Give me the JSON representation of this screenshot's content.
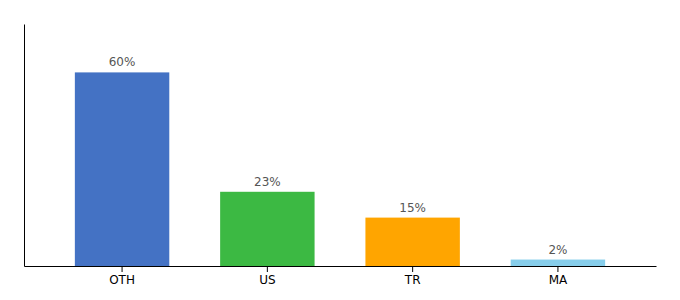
{
  "chart_data": {
    "type": "bar",
    "categories": [
      "OTH",
      "US",
      "TR",
      "MA"
    ],
    "values": [
      60,
      23,
      15,
      2
    ],
    "value_labels": [
      "60%",
      "23%",
      "15%",
      "2%"
    ],
    "data_labels": true,
    "colors": [
      "#4472C4",
      "#3CB943",
      "#FFA500",
      "#87CEEB"
    ],
    "ylim": [
      0,
      75
    ],
    "yticks": [],
    "tick_labels": "x"
  }
}
